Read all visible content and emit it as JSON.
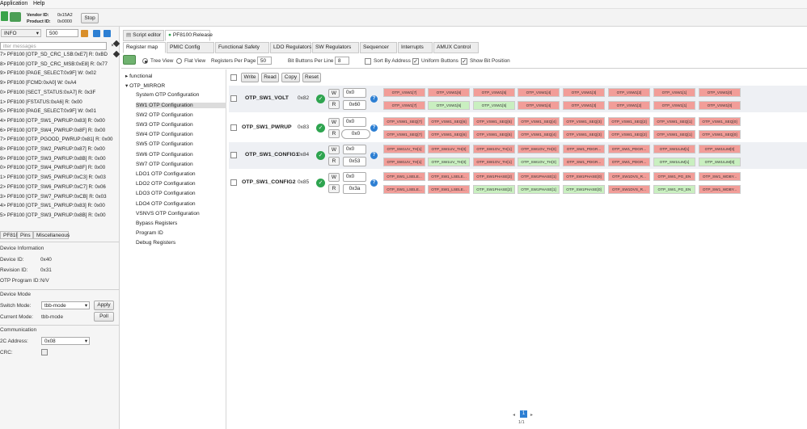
{
  "menu": [
    "Application",
    "Help"
  ],
  "vendor": {
    "vendor_label": "Vendor ID:",
    "vendor_value": "0x15A2",
    "product_label": "Product ID:",
    "product_value": "0x0000",
    "stop": "Stop"
  },
  "log": {
    "level": "INFO",
    "count": "500",
    "filter_placeholder": "ilter messages",
    "lines": [
      "7> PF8100 [OTP_SD_CRC_LSB:0xE7] R: 0xBD",
      "8> PF8100 [OTP_SD_CRC_MSB:0xE8] R: 0x77",
      "9> PF8100 [PAGE_SELECT:0x9F] W: 0x02",
      "9> PF8100 [FCMD:0xA0] W: 0xA4",
      "0> PF8100 [SECT_STATUS:0xA7] R: 0x3F",
      "1> PF8100 [FSTATUS:0xA6] R: 0x00",
      "5> PF8100 [PAGE_SELECT:0x9F] W: 0x01",
      "4> PF8100 [OTP_SW1_PWRUP:0x83] R: 0x00",
      "6> PF8100 [OTP_SW4_PWRUP:0x8F] R: 0x00",
      "7> PF8100 [OTP_PGOOD_PWRUP:0x81] R: 0x00",
      "8> PF8100 [OTP_SW2_PWRUP:0x87] R: 0x00",
      "9> PF8100 [OTP_SW3_PWRUP:0x8B] R: 0x00",
      "0> PF8100 [OTP_SW4_PWRUP:0x8F] R: 0x00",
      "1> PF8100 [OTP_SW5_PWRUP:0xC3] R: 0x03",
      "2> PF8100 [OTP_SW6_PWRUP:0xC7] R: 0x06",
      "3> PF8100 [OTP_SW7_PWRUP:0xCB] R: 0x03",
      "4> PF8100 [OTP_SW1_PWRUP:0x83] R: 0x00",
      "5> PF8100 [OTP_SW3_PWRUP:0x8B] R: 0x00"
    ]
  },
  "bottom_tabs": [
    "PF8100",
    "Pins",
    "Miscellaneous"
  ],
  "device_info": {
    "title": "Device Information",
    "device_id_label": "Device ID:",
    "device_id": "0x40",
    "revision_label": "Revision ID:",
    "revision": "0x31",
    "otp_label": "OTP Program ID:",
    "otp": "N/V"
  },
  "device_mode": {
    "title": "Device Mode",
    "switch_label": "Switch Mode:",
    "switch_value": "tbb-mode",
    "apply": "Apply",
    "current_label": "Current Mode:",
    "current_value": "tbb-mode",
    "poll": "Poll"
  },
  "communication": {
    "title": "Communication",
    "i2c_label": "2C Address:",
    "i2c_value": "0x08",
    "crc_label": "CRC:"
  },
  "tabs": [
    "Script editor",
    "PF8100:Release"
  ],
  "subtabs": [
    "Register map",
    "PMIC Config",
    "Functional Safety",
    "LDO Regulators",
    "SW Regulators",
    "Sequencer",
    "Interrupts",
    "AMUX Control"
  ],
  "viewopts": {
    "tree": "Tree View",
    "flat": "Flat View",
    "rpp_label": "Registers Per Page",
    "rpp": "50",
    "bbl_label": "Bit Buttons Per Line",
    "bbl": "8",
    "sort": "Sort By Address",
    "uniform": "Uniform Buttons",
    "showbit": "Show Bit Position"
  },
  "actions": [
    "Write",
    "Read",
    "Copy",
    "Reset"
  ],
  "tree": [
    "functional",
    "OTP_MIRROR",
    "System OTP Configuration",
    "SW1 OTP Configuration",
    "SW2 OTP Configuration",
    "SW3 OTP Configuration",
    "SW4 OTP Configuration",
    "SW5 OTP Configuration",
    "SW6 OTP Configuration",
    "SW7 OTP Configuration",
    "LDO1 OTP Configuration",
    "LDO2 OTP Configuration",
    "LDO3 OTP Configuration",
    "LDO4 OTP Configuration",
    "VSNVS OTP Configuration",
    "Bypass Registers",
    "Program ID",
    "Debug Registers"
  ],
  "registers": [
    {
      "name": "OTP_SW1_VOLT",
      "addr": "0x82",
      "w_value": "0x0",
      "r_value": "0x60",
      "w_bits": [
        "OTP_VSW1[7]",
        "OTP_VSW1[6]",
        "OTP_VSW1[5]",
        "OTP_VSW1[4]",
        "OTP_VSW1[3]",
        "OTP_VSW1[2]",
        "OTP_VSW1[1]",
        "OTP_VSW1[0]"
      ],
      "r_bits": [
        "OTP_VSW1[7]",
        "OTP_VSW1[6]",
        "OTP_VSW1[5]",
        "OTP_VSW1[4]",
        "OTP_VSW1[3]",
        "OTP_VSW1[2]",
        "OTP_VSW1[1]",
        "OTP_VSW1[0]"
      ],
      "r_green": [
        1,
        2
      ]
    },
    {
      "name": "OTP_SW1_PWRUP",
      "addr": "0x83",
      "w_value": "0x0",
      "r_value": "0x0",
      "w_bits": [
        "OTP_VSW1_SEQ[7]",
        "OTP_VSW1_SEQ[6]",
        "OTP_VSW1_SEQ[5]",
        "OTP_VSW1_SEQ[4]",
        "OTP_VSW1_SEQ[3]",
        "OTP_VSW1_SEQ[2]",
        "OTP_VSW1_SEQ[1]",
        "OTP_VSW1_SEQ[0]"
      ],
      "r_bits": [
        "OTP_VSW1_SEQ[7]",
        "OTP_VSW1_SEQ[6]",
        "OTP_VSW1_SEQ[5]",
        "OTP_VSW1_SEQ[4]",
        "OTP_VSW1_SEQ[3]",
        "OTP_VSW1_SEQ[2]",
        "OTP_VSW1_SEQ[1]",
        "OTP_VSW1_SEQ[0]"
      ],
      "r_green": []
    },
    {
      "name": "OTP_SW1_CONFIG1",
      "addr": "0x84",
      "w_value": "0x0",
      "r_value": "0x53",
      "w_bits": [
        "OTP_SW1UV_TH[1]",
        "OTP_SW1UV_TH[0]",
        "OTP_SW1OV_TH[1]",
        "OTP_SW1OV_TH[0]",
        "OTP_SW1_PDGR...",
        "OTP_SW1_PDGR...",
        "OTP_SW1ILIM[1]",
        "OTP_SW1ILIM[0]"
      ],
      "r_bits": [
        "OTP_SW1UV_TH[1]",
        "OTP_SW1UV_TH[0]",
        "OTP_SW1OV_TH[1]",
        "OTP_SW1OV_TH[0]",
        "OTP_SW1_PDGR...",
        "OTP_SW1_PDGR...",
        "OTP_SW1ILIM[1]",
        "OTP_SW1ILIM[0]"
      ],
      "r_green": [
        1,
        3,
        6,
        7
      ]
    },
    {
      "name": "OTP_SW1_CONFIG2",
      "addr": "0x85",
      "w_value": "0x0",
      "r_value": "0x3a",
      "w_bits": [
        "OTP_SW1_LSELE...",
        "OTP_SW1_LSELE...",
        "OTP_SW1PHASE[2]",
        "OTP_SW1PHASE[1]",
        "OTP_SW1PHASE[0]",
        "OTP_SW1DVS_R...",
        "OTP_SW1_PG_EN",
        "OTP_SW1_WDBY..."
      ],
      "r_bits": [
        "OTP_SW1_LSELE...",
        "OTP_SW1_LSELE...",
        "OTP_SW1PHASE[2]",
        "OTP_SW1PHASE[1]",
        "OTP_SW1PHASE[0]",
        "OTP_SW1DVS_R...",
        "OTP_SW1_PG_EN",
        "OTP_SW1_WDBY..."
      ],
      "r_green": [
        2,
        3,
        4,
        6
      ]
    }
  ],
  "pager": {
    "page": "1",
    "of": "1/1"
  }
}
